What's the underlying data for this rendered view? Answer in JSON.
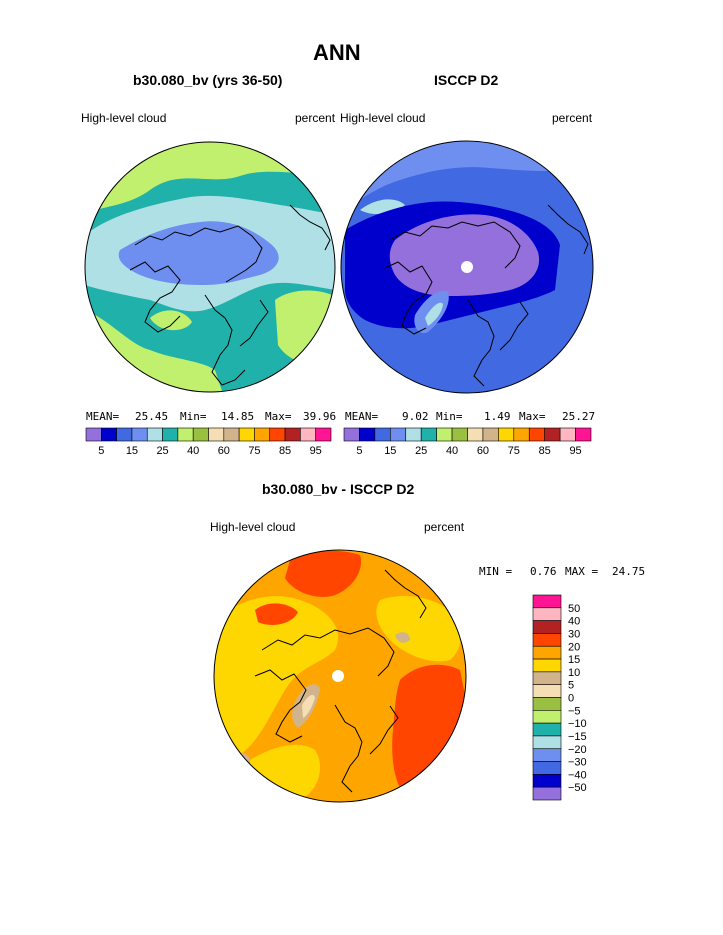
{
  "page": {
    "title": "ANN"
  },
  "panel_left": {
    "case": "b30.080_bv (yrs 36-50)",
    "field": "High-level cloud",
    "units": "percent",
    "stats": {
      "mean_label": "MEAN=",
      "mean": "25.45",
      "min_label": "Min=",
      "min": "14.85",
      "max_label": "Max=",
      "max": "39.96"
    }
  },
  "panel_right": {
    "case": "ISCCP D2",
    "field": "High-level cloud",
    "units": "percent",
    "stats": {
      "mean_label": "MEAN=",
      "mean": "9.02",
      "min_label": "Min=",
      "min": "1.49",
      "max_label": "Max=",
      "max": "25.27"
    }
  },
  "panel_diff": {
    "case": "b30.080_bv - ISCCP D2",
    "field": "High-level cloud",
    "units": "percent",
    "stats": {
      "min_label": "MIN =",
      "min": "0.76",
      "max_label": "MAX =",
      "max": "24.75"
    }
  },
  "chart_data": [
    {
      "type": "heatmap",
      "title": "b30.080_bv (yrs 36-50)",
      "projection": "north-polar-stereographic",
      "variable": "High-level cloud",
      "units": "percent",
      "mean": 25.45,
      "min": 14.85,
      "max": 39.96,
      "colorbar": {
        "levels": [
          5,
          10,
          15,
          20,
          25,
          30,
          40,
          50,
          60,
          70,
          75,
          80,
          85,
          90,
          95
        ],
        "tick_labels": [
          "5",
          "15",
          "25",
          "40",
          "60",
          "75",
          "85",
          "95"
        ],
        "colors": [
          "#9370db",
          "#0000cd",
          "#4169e1",
          "#6f8ff0",
          "#afe0e6",
          "#20b2aa",
          "#c1f06e",
          "#99c040",
          "#f5deb3",
          "#d2b48c",
          "#ffd700",
          "#ffa500",
          "#ff4500",
          "#b22222",
          "#ffb6c1",
          "#ff1493"
        ]
      }
    },
    {
      "type": "heatmap",
      "title": "ISCCP D2",
      "projection": "north-polar-stereographic",
      "variable": "High-level cloud",
      "units": "percent",
      "mean": 9.02,
      "min": 1.49,
      "max": 25.27,
      "colorbar": {
        "levels": [
          5,
          10,
          15,
          20,
          25,
          30,
          40,
          50,
          60,
          70,
          75,
          80,
          85,
          90,
          95
        ],
        "tick_labels": [
          "5",
          "15",
          "25",
          "40",
          "60",
          "75",
          "85",
          "95"
        ],
        "colors": [
          "#9370db",
          "#0000cd",
          "#4169e1",
          "#6f8ff0",
          "#afe0e6",
          "#20b2aa",
          "#c1f06e",
          "#99c040",
          "#f5deb3",
          "#d2b48c",
          "#ffd700",
          "#ffa500",
          "#ff4500",
          "#b22222",
          "#ffb6c1",
          "#ff1493"
        ]
      }
    },
    {
      "type": "heatmap",
      "title": "b30.080_bv - ISCCP D2",
      "projection": "north-polar-stereographic",
      "variable": "High-level cloud",
      "units": "percent",
      "min": 0.76,
      "max": 24.75,
      "colorbar": {
        "levels": [
          "50",
          "40",
          "30",
          "20",
          "15",
          "10",
          "5",
          "0",
          "−5",
          "−10",
          "−15",
          "−20",
          "−30",
          "−40",
          "−50"
        ],
        "colors": [
          "#ff1493",
          "#ffb6c1",
          "#b22222",
          "#ff4500",
          "#ffa500",
          "#ffd700",
          "#d2b48c",
          "#f5deb3",
          "#99c040",
          "#c1f06e",
          "#20b2aa",
          "#afe0e6",
          "#6f8ff0",
          "#4169e1",
          "#0000cd",
          "#9370db"
        ]
      }
    }
  ]
}
